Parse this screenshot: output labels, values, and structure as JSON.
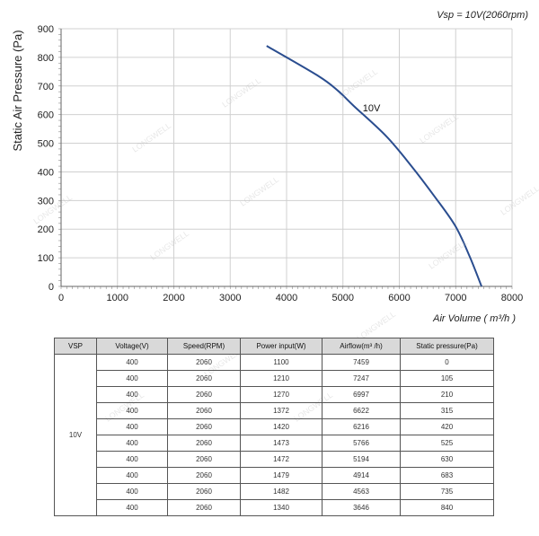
{
  "chart_data": {
    "type": "line",
    "title": "Vsp = 10V(2060rpm)",
    "xlabel": "Air Volume ( m³/h )",
    "ylabel": "Static Air Pressure  (Pa)",
    "xlim": [
      0,
      8000
    ],
    "ylim": [
      0,
      900
    ],
    "xticks": [
      "0",
      "1000",
      "2000",
      "3000",
      "4000",
      "5000",
      "6000",
      "7000",
      "8000"
    ],
    "yticks": [
      "0",
      "100",
      "200",
      "300",
      "400",
      "500",
      "600",
      "700",
      "800",
      "900"
    ],
    "grid": true,
    "series": [
      {
        "name": "10V",
        "color": "#2a4d8f",
        "x": [
          3646,
          4563,
          4914,
          5194,
          5766,
          6216,
          6622,
          6997,
          7247,
          7459
        ],
        "y": [
          840,
          735,
          683,
          630,
          525,
          420,
          315,
          210,
          105,
          0
        ]
      }
    ]
  },
  "table": {
    "headers": [
      "VSP",
      "Voltage(V)",
      "Speed(RPM)",
      "Power input(W)",
      "Airflow(m³ /h)",
      "Static pressure(Pa)"
    ],
    "vsp": "10V",
    "rows": [
      [
        "400",
        "2060",
        "1100",
        "7459",
        "0"
      ],
      [
        "400",
        "2060",
        "1210",
        "7247",
        "105"
      ],
      [
        "400",
        "2060",
        "1270",
        "6997",
        "210"
      ],
      [
        "400",
        "2060",
        "1372",
        "6622",
        "315"
      ],
      [
        "400",
        "2060",
        "1420",
        "6216",
        "420"
      ],
      [
        "400",
        "2060",
        "1473",
        "5766",
        "525"
      ],
      [
        "400",
        "2060",
        "1472",
        "5194",
        "630"
      ],
      [
        "400",
        "2060",
        "1479",
        "4914",
        "683"
      ],
      [
        "400",
        "2060",
        "1482",
        "4563",
        "735"
      ],
      [
        "400",
        "2060",
        "1340",
        "3646",
        "840"
      ]
    ]
  },
  "watermark": "LONGWELL"
}
